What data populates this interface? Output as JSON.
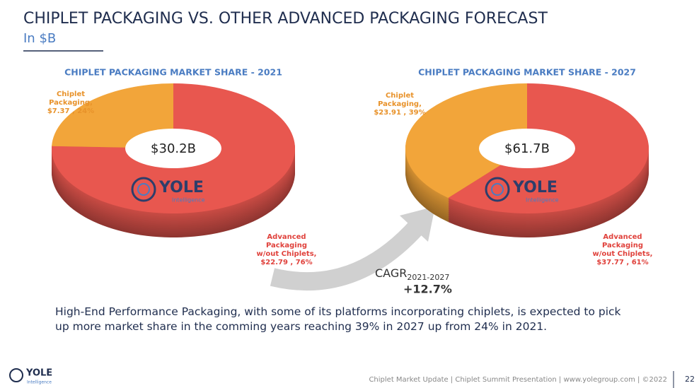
{
  "header": {
    "title": "CHIPLET PACKAGING VS. OTHER ADVANCED PACKAGING FORECAST",
    "subtitle": "In $B"
  },
  "chart_data": [
    {
      "type": "pie",
      "title": "CHIPLET PACKAGING MARKET SHARE - 2021",
      "categories": [
        "Chiplet Packaging,",
        "Advanced Packaging w/out Chiplets,"
      ],
      "values": [
        7.37,
        22.79
      ],
      "value_labels": [
        "$7.37 , 24%",
        "$22.79 , 76%"
      ],
      "colors": [
        "#f2a53a",
        "#e8574f"
      ],
      "center_label": "$30.2B"
    },
    {
      "type": "pie",
      "title": "CHIPLET PACKAGING MARKET SHARE - 2027",
      "categories": [
        "Chiplet Packaging,",
        "Advanced Packaging w/out Chiplets,"
      ],
      "values": [
        23.91,
        37.77
      ],
      "value_labels": [
        "$23.91 , 39%",
        "$37.77 , 61%"
      ],
      "colors": [
        "#f2a53a",
        "#e8574f"
      ],
      "center_label": "$61.7B"
    }
  ],
  "cagr": {
    "label": "CAGR",
    "period": "2021-2027",
    "value": "+12.7%"
  },
  "logo": {
    "name": "YOLE",
    "tagline": "Intelligence"
  },
  "body": "High-End Performance Packaging, with some of its platforms incorporating chiplets, is expected to pick up more market share in the comming years reaching 39% in 2027 up from 24% in 2021.",
  "footer": {
    "text": "Chiplet Market Update | Chiplet Summit Presentation | www.yolegroup.com | ©2022",
    "page": "22"
  }
}
